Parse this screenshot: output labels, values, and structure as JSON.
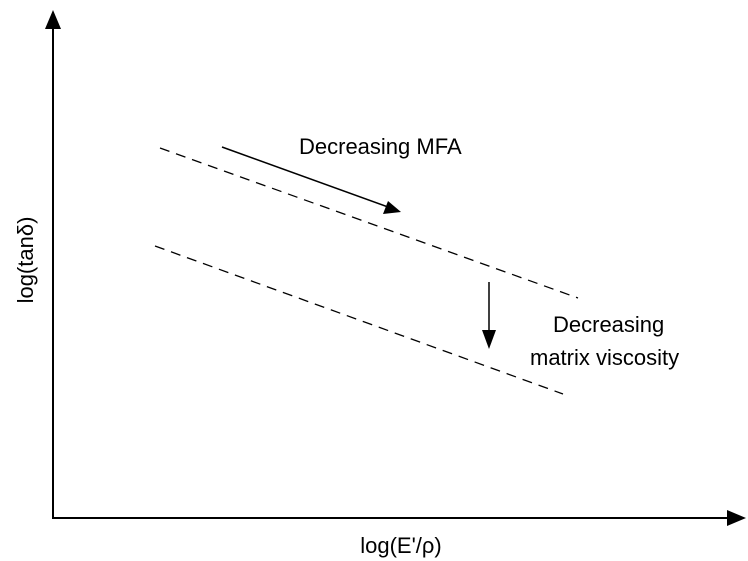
{
  "diagram": {
    "x_axis_label": "log(E'/ρ)",
    "y_axis_label": "log(tanδ)",
    "annotation_mfa": "Decreasing MFA",
    "annotation_viscosity_line1": "Decreasing",
    "annotation_viscosity_line2": "matrix viscosity"
  }
}
